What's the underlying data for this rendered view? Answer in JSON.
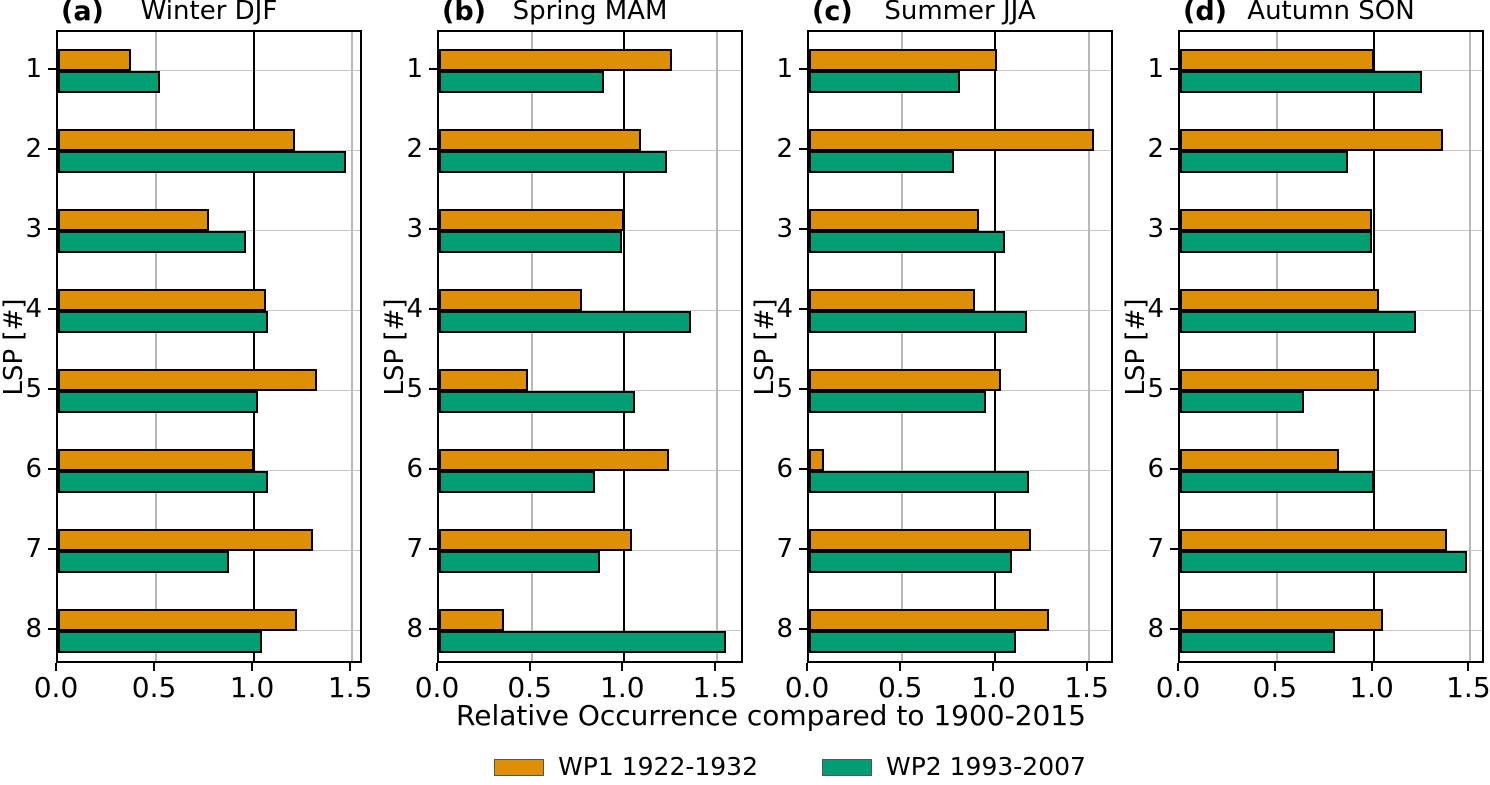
{
  "chart_data": {
    "type": "bar",
    "orientation": "horizontal",
    "grid": true,
    "categories": [
      "1",
      "2",
      "3",
      "4",
      "5",
      "6",
      "7",
      "8"
    ],
    "ylabel": "LSP [#]",
    "xlabel": "Relative Occurrence compared to 1900-2015",
    "xticks": [
      "0.0",
      "0.5",
      "1.0",
      "1.5"
    ],
    "xtick_values": [
      0.0,
      0.5,
      1.0,
      1.5
    ],
    "reference_line_x": 1.0,
    "legend_position": "bottom-center",
    "series_names": [
      "WP1 1922-1932",
      "WP2 1993-2007"
    ],
    "series_colors": [
      "#de8f05",
      "#029e73"
    ],
    "panels": [
      {
        "letter": "(a)",
        "title": "Winter DJF",
        "xlim": [
          0,
          1.54
        ],
        "series": [
          {
            "name": "WP1 1922-1932",
            "values": [
              0.37,
              1.21,
              0.77,
              1.06,
              1.32,
              1.0,
              1.3,
              1.22
            ]
          },
          {
            "name": "WP2 1993-2007",
            "values": [
              0.52,
              1.47,
              0.96,
              1.07,
              1.02,
              1.07,
              0.87,
              1.04
            ]
          }
        ]
      },
      {
        "letter": "(b)",
        "title": "Spring MAM",
        "xlim": [
          0,
          1.63
        ],
        "series": [
          {
            "name": "WP1 1922-1932",
            "values": [
              1.26,
              1.09,
              1.0,
              0.77,
              0.48,
              1.24,
              1.04,
              0.35
            ]
          },
          {
            "name": "WP2 1993-2007",
            "values": [
              0.89,
              1.23,
              0.99,
              1.36,
              1.06,
              0.84,
              0.87,
              1.55
            ]
          }
        ]
      },
      {
        "letter": "(c)",
        "title": "Summer JJA",
        "xlim": [
          0,
          1.62
        ],
        "series": [
          {
            "name": "WP1 1922-1932",
            "values": [
              1.01,
              1.53,
              0.91,
              0.89,
              1.03,
              0.08,
              1.19,
              1.29
            ]
          },
          {
            "name": "WP2 1993-2007",
            "values": [
              0.81,
              0.78,
              1.05,
              1.17,
              0.95,
              1.18,
              1.09,
              1.11
            ]
          }
        ]
      },
      {
        "letter": "(d)",
        "title": "Autumn SON",
        "xlim": [
          0,
          1.56
        ],
        "series": [
          {
            "name": "WP1 1922-1932",
            "values": [
              1.0,
              1.36,
              0.99,
              1.03,
              1.03,
              0.82,
              1.38,
              1.05
            ]
          },
          {
            "name": "WP2 1993-2007",
            "values": [
              1.25,
              0.87,
              0.99,
              1.22,
              0.64,
              1.0,
              1.48,
              0.8
            ]
          }
        ]
      }
    ]
  },
  "legend": {
    "wp1_label": "WP1 1922-1932",
    "wp2_label": "WP2 1993-2007"
  }
}
